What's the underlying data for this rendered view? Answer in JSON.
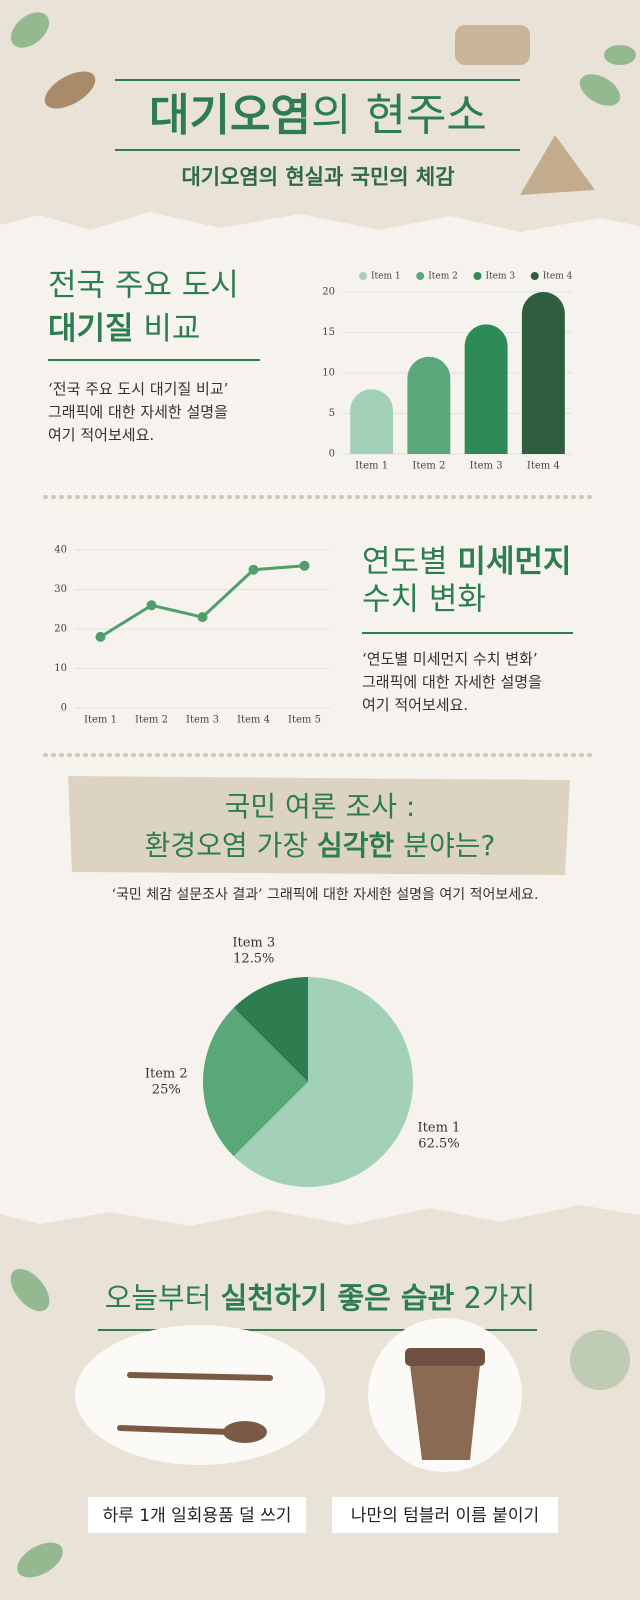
{
  "header": {
    "title_bold": "대기오염",
    "title_rest": "의 현주소",
    "subtitle": "대기오염의 현실과 국민의 체감"
  },
  "section1": {
    "line1": "전국 주요 도시",
    "line2_bold": "대기질",
    "line2_rest": " 비교",
    "description": [
      "‘전국 주요 도시 대기질 비교’",
      "그래픽에 대한 자세한 설명을",
      "여기 적어보세요."
    ]
  },
  "section2": {
    "line1_rest": "연도별 ",
    "line1_bold": "미세먼지",
    "line2": "수치 변화",
    "description": [
      "‘연도별 미세먼지 수치 변화’",
      "그래픽에 대한 자세한 설명을",
      "여기 적어보세요."
    ]
  },
  "survey": {
    "line1": "국민 여론 조사 :",
    "line2_rest": "환경오염 가장 ",
    "line2_bold": "심각한",
    "line2_end": " 분야는?",
    "description": "‘국민 체감 설문조사 결과’ 그래픽에 대한 자세한 설명을 여기 적어보세요."
  },
  "habits": {
    "title_rest": "오늘부터 ",
    "title_bold": "실천하기 좋은 습관",
    "title_end": " 2가지",
    "items": [
      "하루 1개 일회용품 덜 쓰기",
      "나만의 텀블러 이름 붙이기"
    ]
  },
  "chart_data": [
    {
      "type": "bar",
      "categories": [
        "Item 1",
        "Item 2",
        "Item 3",
        "Item 4"
      ],
      "values": [
        8,
        12,
        16,
        20
      ],
      "colors": [
        "#a3d1b7",
        "#5aa77a",
        "#2e8b57",
        "#2e5e3f"
      ],
      "ylim": [
        0,
        20
      ],
      "yticks": [
        0,
        5,
        10,
        15,
        20
      ],
      "grid": true,
      "legend": "top"
    },
    {
      "type": "line",
      "categories": [
        "Item 1",
        "Item 2",
        "Item 3",
        "Item 4",
        "Item 5"
      ],
      "values": [
        18,
        26,
        23,
        35,
        36
      ],
      "color": "#4f9e6c",
      "ylim": [
        0,
        40
      ],
      "yticks": [
        0,
        10,
        20,
        30,
        40
      ],
      "grid": true
    },
    {
      "type": "pie",
      "categories": [
        "Item 1",
        "Item 2",
        "Item 3"
      ],
      "values": [
        62.5,
        25,
        12.5
      ],
      "value_labels": [
        "62.5%",
        "25%",
        "12.5%"
      ],
      "colors": [
        "#a3d1b7",
        "#5aa77a",
        "#2e7d50"
      ]
    }
  ]
}
